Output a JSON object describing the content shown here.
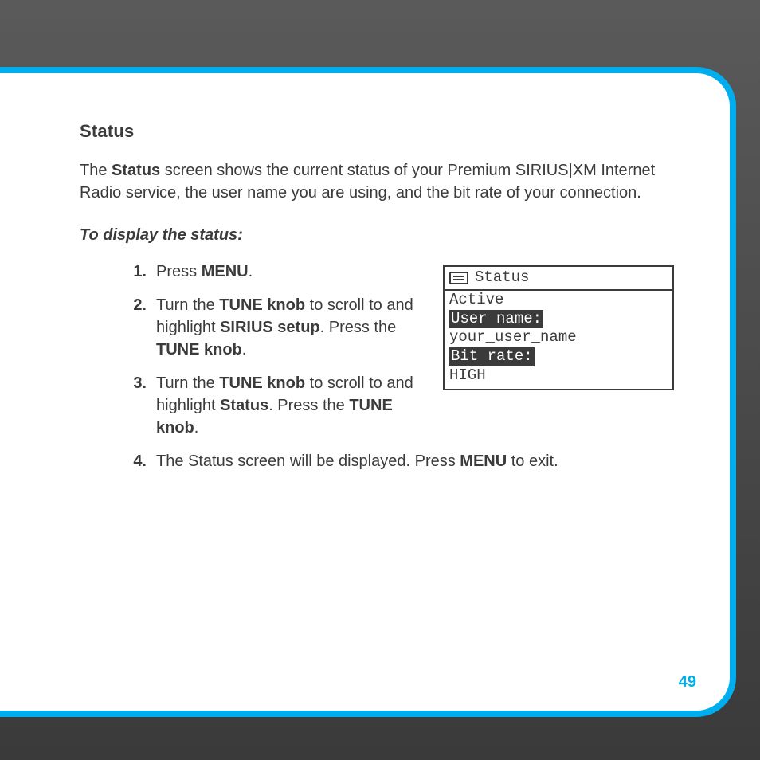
{
  "colors": {
    "accent": "#00aeef",
    "page_bg": "#ffffff",
    "text": "#3b3b3b",
    "body_bg_top": "#5a5a5a",
    "body_bg_bottom": "#3a3a3a"
  },
  "title": "Status",
  "intro": {
    "prefix": "The ",
    "bold": "Status",
    "suffix": " screen shows the current status of your Premium SIRIUS|XM Internet Radio service, the user name you are using, and the bit rate of your connection."
  },
  "subheading": "To display the status:",
  "steps": [
    {
      "num": "1.",
      "parts": [
        {
          "t": "Press ",
          "b": false
        },
        {
          "t": "MENU",
          "b": true
        },
        {
          "t": ".",
          "b": false
        }
      ]
    },
    {
      "num": "2.",
      "parts": [
        {
          "t": "Turn the ",
          "b": false
        },
        {
          "t": "TUNE knob",
          "b": true
        },
        {
          "t": " to scroll to and highlight ",
          "b": false
        },
        {
          "t": "SIRIUS setup",
          "b": true
        },
        {
          "t": ". Press the ",
          "b": false
        },
        {
          "t": "TUNE knob",
          "b": true
        },
        {
          "t": ".",
          "b": false
        }
      ]
    },
    {
      "num": "3.",
      "parts": [
        {
          "t": "Turn the ",
          "b": false
        },
        {
          "t": "TUNE knob",
          "b": true
        },
        {
          "t": " to scroll to and highlight ",
          "b": false
        },
        {
          "t": "Status",
          "b": true
        },
        {
          "t": ". Press the ",
          "b": false
        },
        {
          "t": "TUNE knob",
          "b": true
        },
        {
          "t": ".",
          "b": false
        }
      ]
    },
    {
      "num": "4.",
      "parts": [
        {
          "t": "The Status screen will be displayed. Press ",
          "b": false
        },
        {
          "t": "MENU",
          "b": true
        },
        {
          "t": " to exit.",
          "b": false
        }
      ]
    }
  ],
  "screen": {
    "header": "Status",
    "lines": [
      {
        "text": "Active",
        "inverted": false
      },
      {
        "text": "User name:",
        "inverted": true
      },
      {
        "text": "your_user_name",
        "inverted": false
      },
      {
        "text": "Bit rate:",
        "inverted": true
      },
      {
        "text": "HIGH",
        "inverted": false
      }
    ]
  },
  "page_number": "49"
}
